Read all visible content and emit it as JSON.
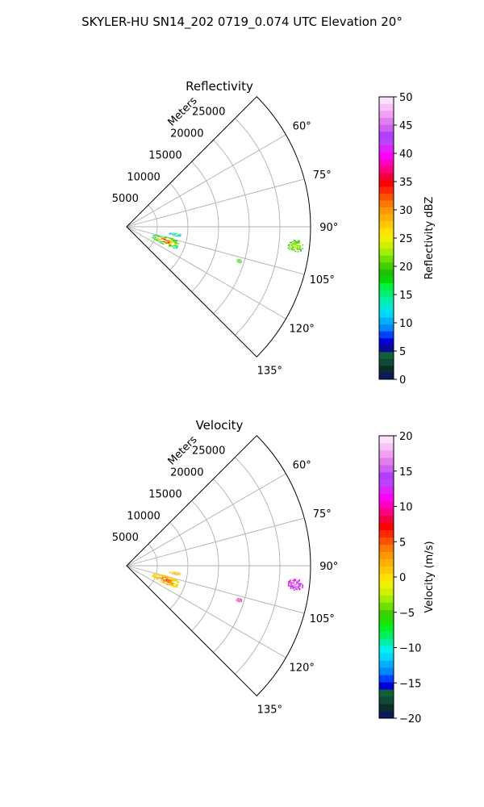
{
  "figure": {
    "title": "SKYLER-HU  SN14_202  0719_0.074 UTC Elevation 20°"
  },
  "chart_data": [
    {
      "type": "polar-sector",
      "title": "Reflectivity",
      "range_label": "Meters",
      "rlim": [
        0,
        30000
      ],
      "theta_range_deg": [
        45,
        135
      ],
      "radial_ticks": [
        5000,
        10000,
        15000,
        20000,
        25000
      ],
      "radial_tick_labels": [
        "5000",
        "10000",
        "15000",
        "20000",
        "25000"
      ],
      "angle_ticks_deg": [
        60,
        75,
        90,
        105,
        120,
        135
      ],
      "angle_tick_labels": [
        "60°",
        "75°",
        "90°",
        "105°",
        "120°",
        "135°"
      ],
      "grid": true,
      "colorbar": {
        "label": "Reflectivity dBZ",
        "min": 0,
        "max": 50,
        "ticks": [
          0,
          5,
          10,
          15,
          20,
          25,
          30,
          35,
          40,
          45,
          50
        ],
        "tick_labels": [
          "0",
          "5",
          "10",
          "15",
          "20",
          "25",
          "30",
          "35",
          "40",
          "45",
          "50"
        ],
        "colors": [
          "#0a1a5c",
          "#0b2e2c",
          "#0e4a36",
          "#10603a",
          "#0a0a90",
          "#0000d8",
          "#0040ff",
          "#0088ff",
          "#00b0ff",
          "#00d8ff",
          "#00e8d8",
          "#00f0a8",
          "#00f070",
          "#00f040",
          "#00d800",
          "#20c000",
          "#40d000",
          "#70e000",
          "#a0f000",
          "#d0f000",
          "#f0f000",
          "#ffe000",
          "#ffc800",
          "#ffb000",
          "#ff9800",
          "#ff7800",
          "#ff5000",
          "#ff2800",
          "#ff0000",
          "#f00040",
          "#ff0080",
          "#ff00c0",
          "#ff00ff",
          "#e020ff",
          "#c040ff",
          "#b040ff",
          "#d060f0",
          "#e080f0",
          "#f0a0f0",
          "#f8c0f8",
          "#fce0fc"
        ]
      },
      "echoes": [
        {
          "az_range_deg": [
            94.5,
            98.5
          ],
          "r_range_m": [
            26500,
            29000
          ],
          "values_dbz": [
            18,
            24
          ]
        },
        {
          "az_range_deg": [
            106,
            108
          ],
          "r_range_m": [
            18700,
            19700
          ],
          "values_dbz": [
            16,
            22
          ]
        },
        {
          "az_range_deg": [
            104,
            116
          ],
          "r_range_m": [
            4500,
            9000
          ],
          "values_dbz": [
            10,
            38
          ]
        },
        {
          "az_range_deg": [
            97,
            101
          ],
          "r_range_m": [
            7000,
            9000
          ],
          "values_dbz": [
            8,
            20
          ]
        }
      ]
    },
    {
      "type": "polar-sector",
      "title": "Velocity",
      "range_label": "Meters",
      "rlim": [
        0,
        30000
      ],
      "theta_range_deg": [
        45,
        135
      ],
      "radial_ticks": [
        5000,
        10000,
        15000,
        20000,
        25000
      ],
      "radial_tick_labels": [
        "5000",
        "10000",
        "15000",
        "20000",
        "25000"
      ],
      "angle_ticks_deg": [
        60,
        75,
        90,
        105,
        120,
        135
      ],
      "angle_tick_labels": [
        "60°",
        "75°",
        "90°",
        "105°",
        "120°",
        "135°"
      ],
      "grid": true,
      "colorbar": {
        "label": "Velocity (m/s)",
        "min": -20,
        "max": 20,
        "ticks": [
          -20,
          -15,
          -10,
          -5,
          0,
          5,
          10,
          15,
          20
        ],
        "tick_labels": [
          "−20",
          "−15",
          "−10",
          "−5",
          "0",
          "5",
          "10",
          "15",
          "20"
        ],
        "colors": [
          "#0a1a5c",
          "#0b2e2c",
          "#0e4a36",
          "#10603a",
          "#0000d8",
          "#0040ff",
          "#0088ff",
          "#00b0ff",
          "#00d8ff",
          "#00f0f0",
          "#00f0a8",
          "#00f060",
          "#00f020",
          "#20e000",
          "#40d000",
          "#70e000",
          "#a0f000",
          "#d0f000",
          "#f0f000",
          "#ffe000",
          "#ffc800",
          "#ffb000",
          "#ff9800",
          "#ff7800",
          "#ff5000",
          "#ff2800",
          "#ff0000",
          "#f00040",
          "#ff0080",
          "#ff00c0",
          "#ff00ff",
          "#e020ff",
          "#c040ff",
          "#b040ff",
          "#d060f0",
          "#e080f0",
          "#f0a0f0",
          "#f8c0f8",
          "#fce0fc"
        ]
      },
      "echoes": [
        {
          "az_range_deg": [
            94.5,
            98.5
          ],
          "r_range_m": [
            26500,
            29000
          ],
          "values_ms": [
            8,
            18
          ]
        },
        {
          "az_range_deg": [
            106,
            108
          ],
          "r_range_m": [
            18700,
            19700
          ],
          "values_ms": [
            6,
            14
          ]
        },
        {
          "az_range_deg": [
            104,
            116
          ],
          "r_range_m": [
            4500,
            9000
          ],
          "values_ms": [
            -2,
            6
          ]
        },
        {
          "az_range_deg": [
            97,
            101
          ],
          "r_range_m": [
            7000,
            9000
          ],
          "values_ms": [
            0,
            4
          ]
        }
      ]
    }
  ]
}
